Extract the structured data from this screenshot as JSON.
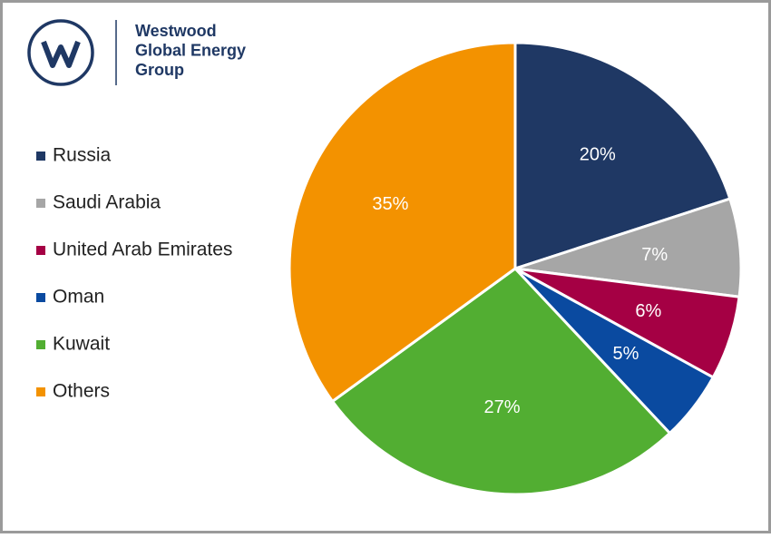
{
  "brand_lines": [
    "Westwood",
    "Global Energy",
    "Group"
  ],
  "chart_data": {
    "type": "pie",
    "categories": [
      "Russia",
      "Saudi Arabia",
      "United Arab Emirates",
      "Oman",
      "Kuwait",
      "Others"
    ],
    "values": [
      20,
      7,
      6,
      5,
      27,
      35
    ],
    "value_labels": [
      "20%",
      "7%",
      "6%",
      "5%",
      "27%",
      "35%"
    ],
    "colors": [
      "#1f3864",
      "#a6a6a6",
      "#a50044",
      "#0a4aa0",
      "#52ae32",
      "#f39200"
    ],
    "legend": "left"
  }
}
